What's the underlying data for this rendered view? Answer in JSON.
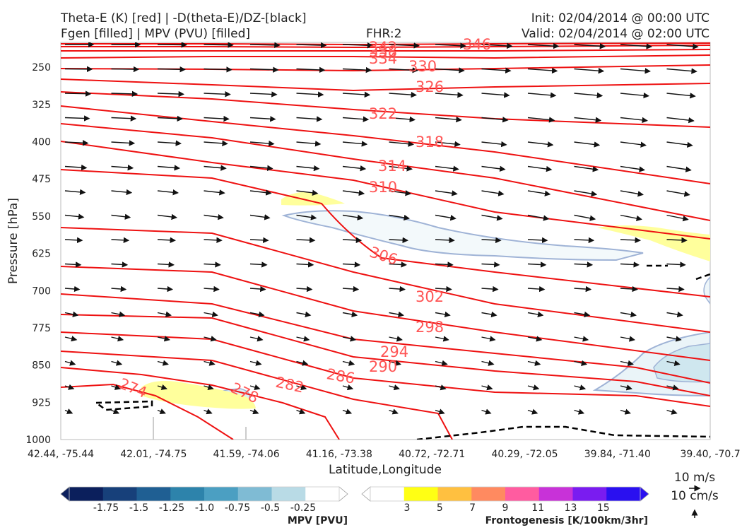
{
  "header": {
    "title_left_line1": "Theta-E (K) [red] | -D(theta-E)/DZ-[black]",
    "title_left_line2": "Fgen [filled] | MPV (PVU) [filled]",
    "title_center": "FHR:2",
    "title_right_line1": "Init: 02/04/2014 @ 00:00 UTC",
    "title_right_line2": "Valid: 02/04/2014 @ 02:00 UTC"
  },
  "chart_data": {
    "type": "cross-section",
    "xlabel": "Latitude,Longitude",
    "ylabel": "Pressure [hPa]",
    "x_ticks": [
      "42.44, -75.44",
      "42.01, -74.75",
      "41.59, -74.06",
      "41.16, -73.38",
      "40.72, -72.71",
      "40.29, -72.05",
      "39.84, -71.40",
      "39.40, -70.7"
    ],
    "y_ticks": [
      250,
      325,
      400,
      475,
      550,
      625,
      700,
      775,
      850,
      925,
      1000
    ],
    "ylim": [
      1000,
      200
    ],
    "theta_e_contours": [
      {
        "value": 346,
        "label": "346"
      },
      {
        "value": 342,
        "label": "342"
      },
      {
        "value": 338,
        "label": "338"
      },
      {
        "value": 334,
        "label": "334"
      },
      {
        "value": 330,
        "label": "330"
      },
      {
        "value": 326,
        "label": "326"
      },
      {
        "value": 322,
        "label": "322"
      },
      {
        "value": 318,
        "label": "318"
      },
      {
        "value": 314,
        "label": "314"
      },
      {
        "value": 310,
        "label": "310"
      },
      {
        "value": 306,
        "label": "306"
      },
      {
        "value": 302,
        "label": "302"
      },
      {
        "value": 298,
        "label": "298"
      },
      {
        "value": 294,
        "label": "294"
      },
      {
        "value": 290,
        "label": "290"
      },
      {
        "value": 286,
        "label": "286"
      },
      {
        "value": 282,
        "label": "282"
      },
      {
        "value": 278,
        "label": "278"
      },
      {
        "value": 274,
        "label": "274"
      }
    ],
    "wind_scale": {
      "horizontal": "10 m/s",
      "vertical": "10 cm/s"
    },
    "mpv_colorbar": {
      "label": "MPV [PVU]",
      "ticks": [
        "-1.75",
        "-1.5",
        "-1.25",
        "-1.0",
        "-0.75",
        "-0.5",
        "-0.25"
      ],
      "colors": [
        "#0b1f5c",
        "#17407a",
        "#1f5f93",
        "#2d83ab",
        "#4b9fc2",
        "#7fbbd4",
        "#b9dbe6",
        "#ffffff"
      ]
    },
    "fgen_colorbar": {
      "label": "Frontogenesis [K/100km/3hr]",
      "ticks": [
        "3",
        "5",
        "7",
        "9",
        "11",
        "13",
        "15"
      ],
      "colors": [
        "#ffffff",
        "#ffff14",
        "#ffc040",
        "#ff8a60",
        "#ff5ca0",
        "#c832d8",
        "#7a1cf0",
        "#2a10f0"
      ]
    },
    "grid": false
  }
}
